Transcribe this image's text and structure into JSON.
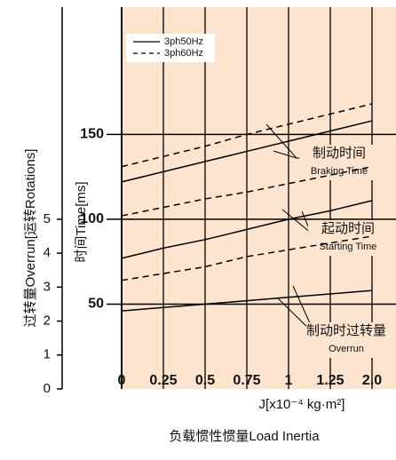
{
  "chart_data": {
    "type": "line",
    "categories": [
      "0",
      "0.25",
      "0.5",
      "0.75",
      "1",
      "1.25",
      "2.0"
    ],
    "x_label": "J[x10⁻⁴ kg·m²]",
    "x_label_2": "负载惯性惯量Load Inertia",
    "y_label": "时间Time[ms]",
    "y2_label": "过转量Overrun[运转Rotations]",
    "ylim": [
      0,
      225
    ],
    "yticks": [
      50,
      100,
      150
    ],
    "y2lim": [
      0,
      11.25
    ],
    "y2ticks": [
      0,
      1,
      2,
      3,
      4,
      5
    ],
    "background": "#fce4cf",
    "series": [
      {
        "name": "3ph50Hz",
        "color": "#000000",
        "dash": false,
        "values": [
          122,
          128,
          134,
          140,
          146,
          152,
          158
        ]
      },
      {
        "name": "3ph60Hz",
        "color": "#000000",
        "dash": true,
        "values": [
          131,
          137,
          143,
          150,
          156,
          162,
          168
        ]
      },
      {
        "name": "3ph50Hz",
        "color": "#000000",
        "dash": false,
        "values": [
          77,
          83,
          88,
          94,
          100,
          105,
          111
        ]
      },
      {
        "name": "3ph60Hz",
        "color": "#000000",
        "dash": true,
        "values": [
          102,
          107,
          112,
          116,
          121,
          126,
          131
        ]
      },
      {
        "name": "3ph50Hz",
        "color": "#000000",
        "dash": false,
        "axis": "y2",
        "values": [
          2.3,
          2.4,
          2.5,
          2.6,
          2.7,
          2.8,
          2.9
        ]
      },
      {
        "name": "3ph60Hz",
        "color": "#000000",
        "dash": true,
        "axis": "y2",
        "values": [
          3.2,
          3.4,
          3.6,
          3.9,
          4.1,
          4.3,
          4.5
        ]
      }
    ],
    "annotations": [
      {
        "text": "制动时间",
        "sub": "Braking Time"
      },
      {
        "text": "起动时间",
        "sub": "Starting Time"
      },
      {
        "text": "制动时过转量",
        "sub": "Overrun"
      }
    ]
  }
}
